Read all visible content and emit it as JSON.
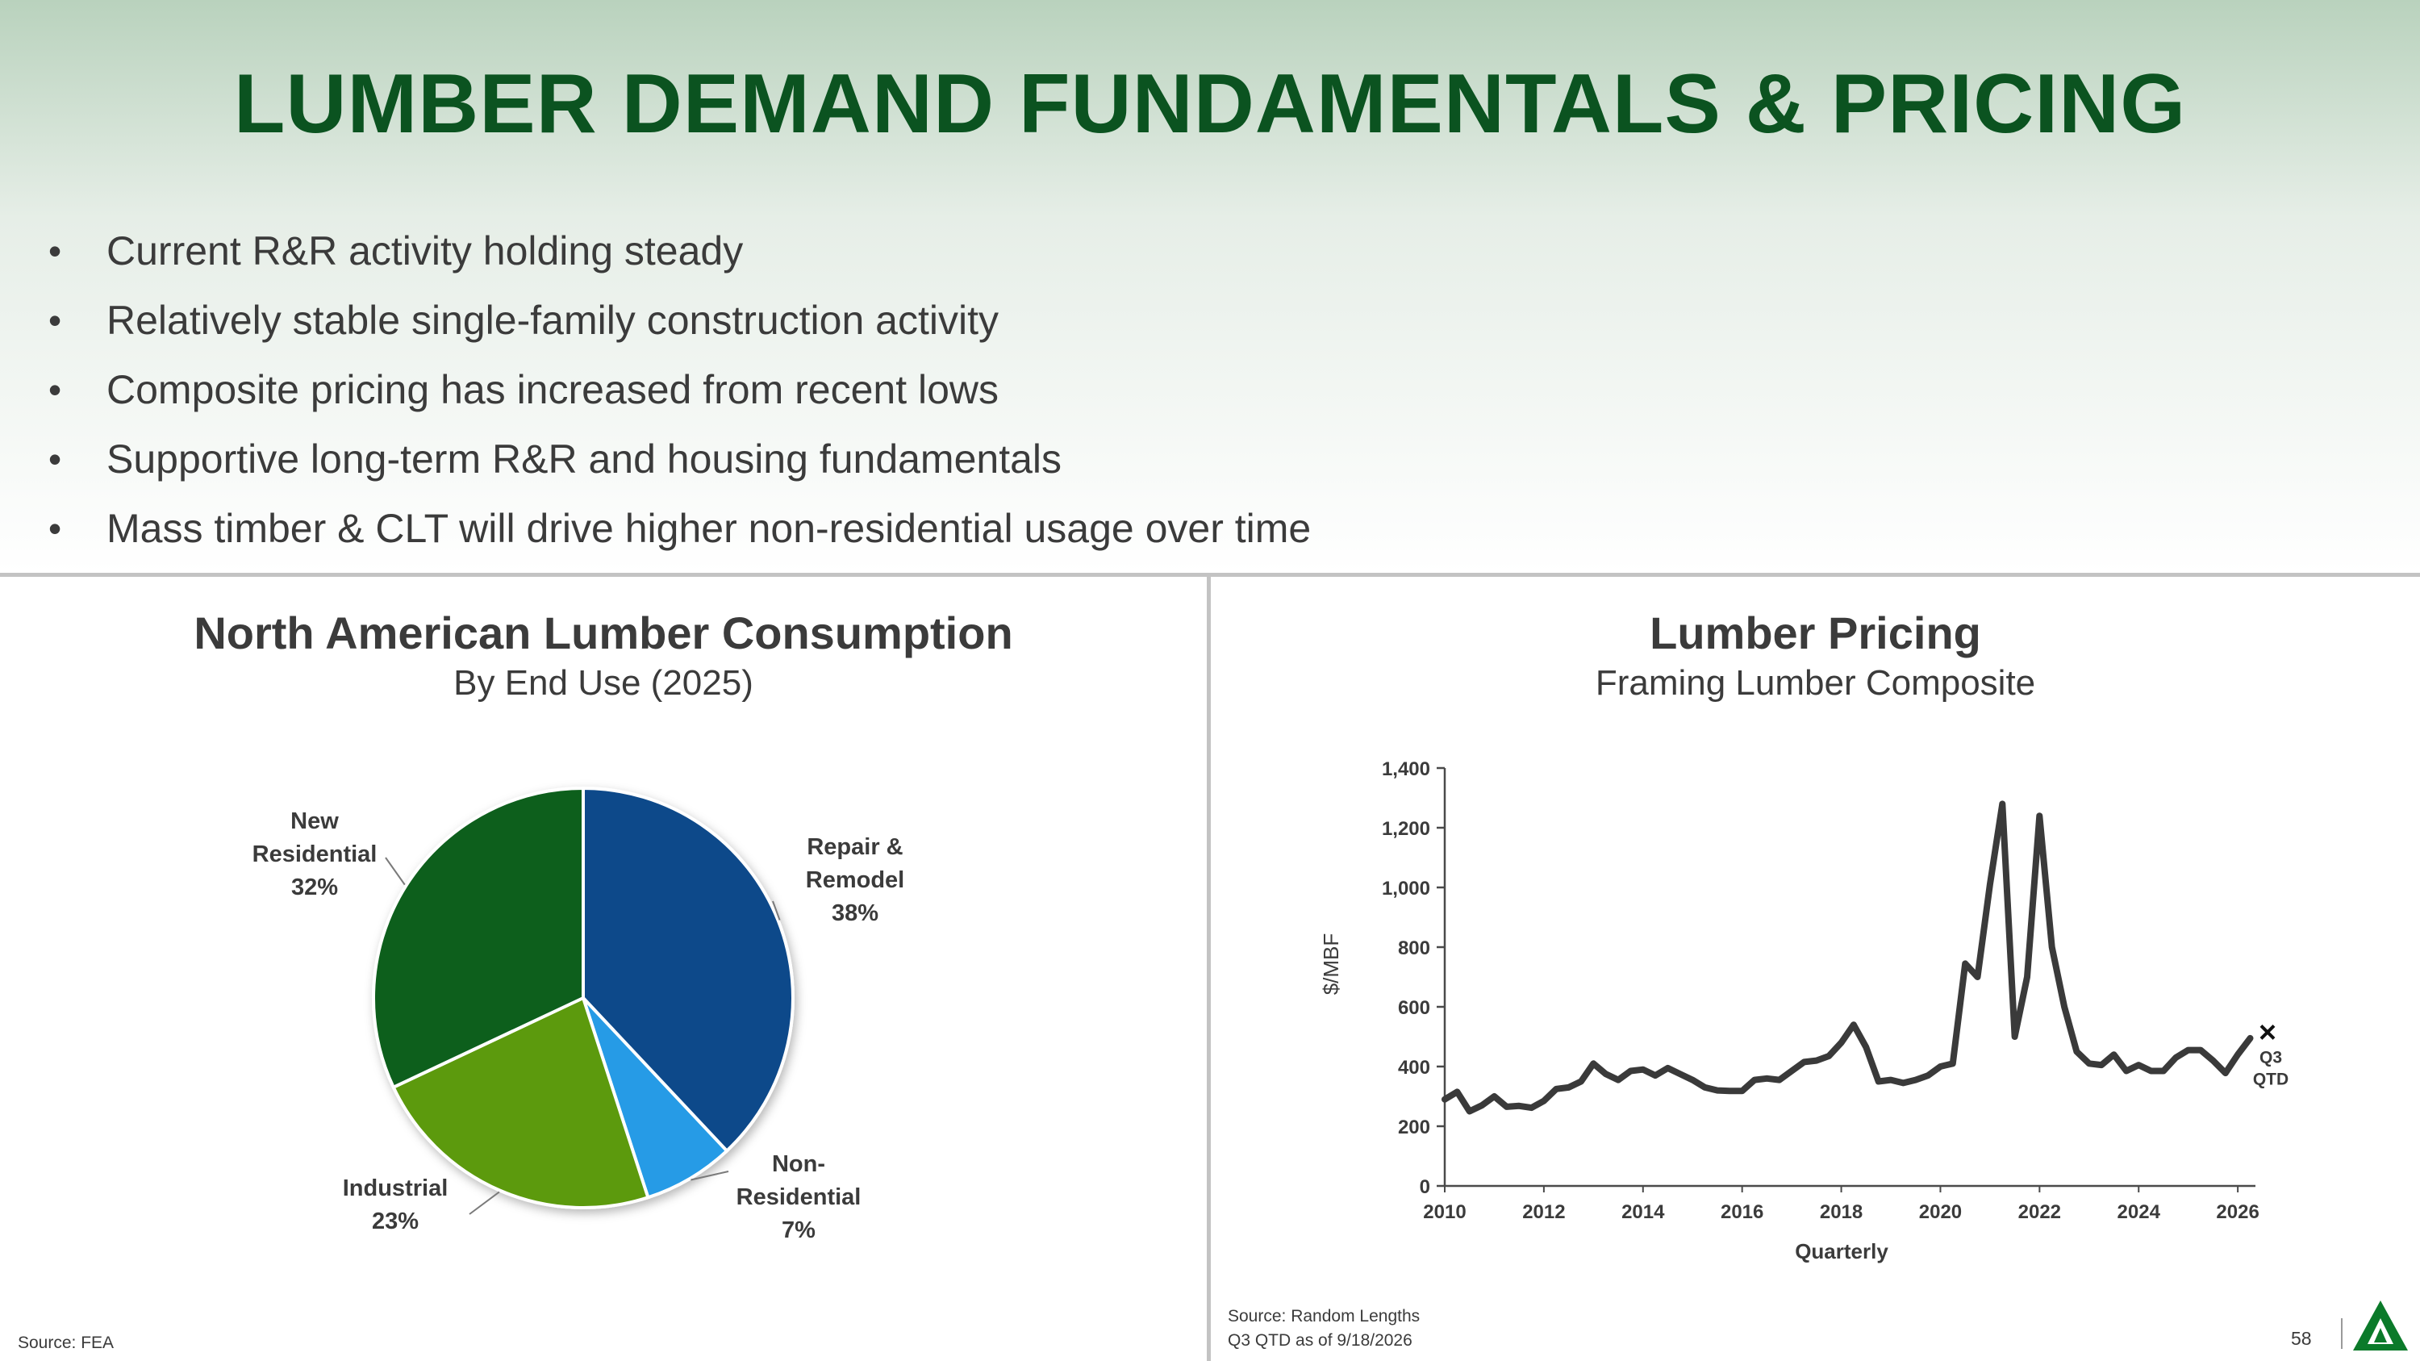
{
  "title": "LUMBER DEMAND FUNDAMENTALS & PRICING",
  "bullets": [
    "Current R&R activity holding steady",
    "Relatively stable single-family construction activity",
    "Composite pricing has increased from recent lows",
    "Supportive long-term R&R and housing fundamentals",
    "Mass timber & CLT will drive higher non-residential usage over time"
  ],
  "colors": {
    "title_green": "#0b5320",
    "repair_remodel": "#0f4a8a",
    "non_residential": "#279be6",
    "industrial": "#5c9a0e",
    "new_residential": "#0a5e1a",
    "line": "#3a3a3a"
  },
  "left_chart": {
    "title": "North American Lumber Consumption",
    "subtitle": "By End Use (2025)",
    "source": "Source: FEA"
  },
  "right_chart": {
    "title": "Lumber Pricing",
    "subtitle": "Framing Lumber Composite",
    "source_line1": "Source: Random Lengths",
    "source_line2": "Q3 QTD as of 9/18/2026",
    "marker_label_1": "Q3",
    "marker_label_2": "QTD"
  },
  "page_number": "58",
  "logo_icon": "green-triangle-logo-icon",
  "chart_data": [
    {
      "type": "pie",
      "title": "North American Lumber Consumption",
      "subtitle": "By End Use (2025)",
      "slices": [
        {
          "label": "Repair & Remodel",
          "value": 38,
          "display": "38%"
        },
        {
          "label": "Non-Residential",
          "value": 7,
          "display": "7%"
        },
        {
          "label": "Industrial",
          "value": 23,
          "display": "23%"
        },
        {
          "label": "New Residential",
          "value": 32,
          "display": "32%"
        }
      ],
      "label_lines": [
        {
          "slice": 0,
          "lines": [
            "Repair &",
            "Remodel",
            "38%"
          ]
        },
        {
          "slice": 1,
          "lines": [
            "Non-",
            "Residential",
            "7%"
          ]
        },
        {
          "slice": 2,
          "lines": [
            "Industrial",
            "23%"
          ]
        },
        {
          "slice": 3,
          "lines": [
            "New",
            "Residential",
            "32%"
          ]
        }
      ]
    },
    {
      "type": "line",
      "title": "Lumber Pricing",
      "subtitle": "Framing Lumber Composite",
      "xlabel": "Quarterly",
      "ylabel": "$/MBF",
      "xlim": [
        2010,
        2026.6
      ],
      "ylim": [
        0,
        1400
      ],
      "xticks": [
        "2010",
        "2012",
        "2014",
        "2016",
        "2018",
        "2020",
        "2022",
        "2024",
        "2026"
      ],
      "yticks": [
        "0",
        "200",
        "400",
        "600",
        "800",
        "1,000",
        "1,200",
        "1,400"
      ],
      "grid": false,
      "series": [
        {
          "x": [
            2010.0,
            2010.25,
            2010.5,
            2010.75,
            2011.0,
            2011.25,
            2011.5,
            2011.75,
            2012.0,
            2012.25,
            2012.5,
            2012.75,
            2013.0,
            2013.25,
            2013.5,
            2013.75,
            2014.0,
            2014.25,
            2014.5,
            2014.75,
            2015.0,
            2015.25,
            2015.5,
            2015.75,
            2016.0,
            2016.25,
            2016.5,
            2016.75,
            2017.0,
            2017.25,
            2017.5,
            2017.75,
            2018.0,
            2018.25,
            2018.5,
            2018.75,
            2019.0,
            2019.25,
            2019.5,
            2019.75,
            2020.0,
            2020.25,
            2020.5,
            2020.75,
            2021.0,
            2021.25,
            2021.5,
            2021.75,
            2022.0,
            2022.25,
            2022.5,
            2022.75,
            2023.0,
            2023.25,
            2023.5,
            2023.75,
            2024.0,
            2024.25,
            2024.5,
            2024.75,
            2025.0,
            2025.25,
            2025.5,
            2025.75,
            2026.0,
            2026.25
          ],
          "values": [
            290,
            315,
            250,
            270,
            300,
            265,
            268,
            262,
            285,
            325,
            330,
            350,
            410,
            375,
            355,
            385,
            390,
            370,
            395,
            375,
            355,
            330,
            320,
            318,
            318,
            355,
            360,
            355,
            385,
            415,
            420,
            435,
            480,
            540,
            465,
            350,
            355,
            345,
            355,
            370,
            400,
            410,
            745,
            700,
            1010,
            1280,
            500,
            700,
            1240,
            800,
            600,
            450,
            410,
            405,
            440,
            385,
            405,
            385,
            385,
            430,
            455,
            455,
            420,
            378,
            440,
            495
          ]
        }
      ],
      "marker": {
        "x": 2026.6,
        "value": 515,
        "label": "Q3 QTD"
      }
    }
  ]
}
